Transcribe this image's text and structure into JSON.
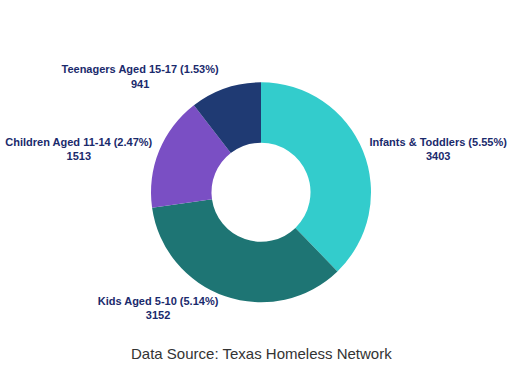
{
  "chart_data": {
    "type": "pie",
    "categories": [
      "Infants & Toddlers (5.55%)",
      "Kids Aged 5-10 (5.14%)",
      "Children Aged 11-14 (2.47%)",
      "Teenagers Aged 15-17 (1.53%)"
    ],
    "values": [
      3403,
      3152,
      1513,
      941
    ],
    "colors": [
      "#33cccc",
      "#1e7574",
      "#7a4fc4",
      "#1f3a73"
    ],
    "data_labels": true,
    "annotations": [
      "Data Source: Texas Homeless Network"
    ]
  }
}
